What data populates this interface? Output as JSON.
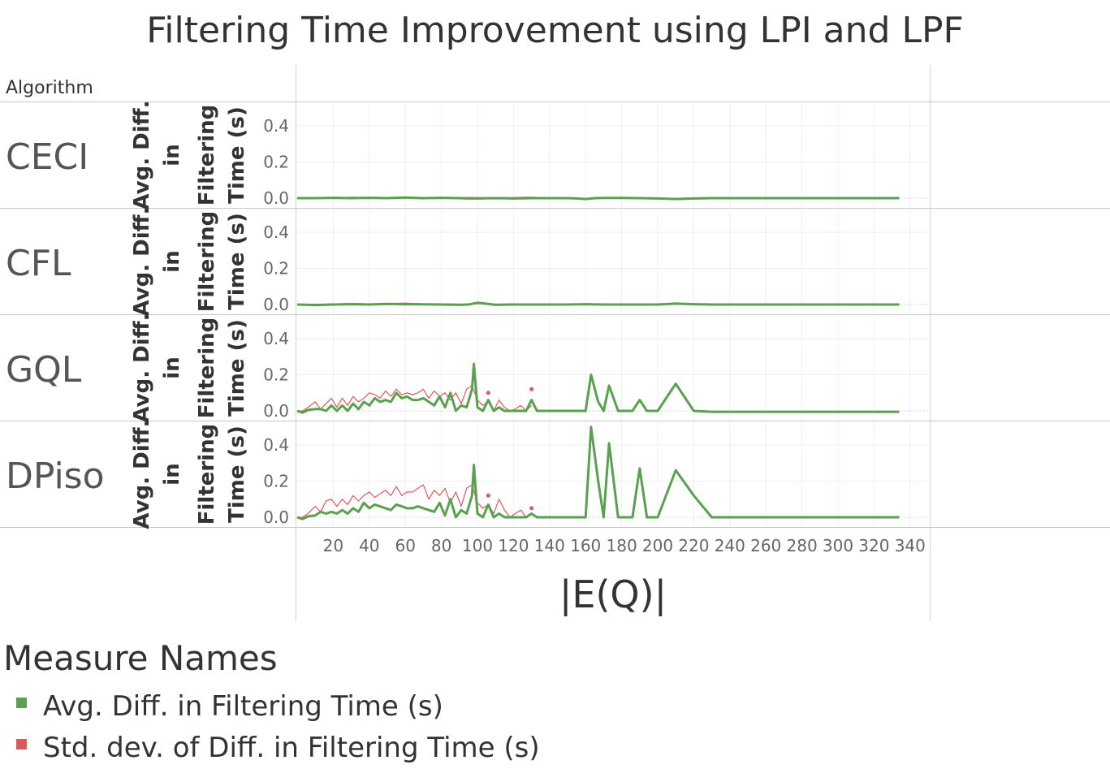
{
  "title": "Filtering Time Improvement using LPI and LPF",
  "row_header": "Algorithm",
  "legend": {
    "title": "Measure Names",
    "items": [
      {
        "label": "Avg. Diff. in Filtering Time (s)",
        "color": "#59a14f"
      },
      {
        "label": "Std. dev. of Diff. in Filtering Time (s)",
        "color": "#e15759"
      }
    ]
  },
  "chart_data": {
    "type": "line",
    "xlabel": "|E(Q)|",
    "ylabel": [
      "Avg. Diff.",
      "in",
      "Filtering",
      "Time (s)"
    ],
    "xlim": [
      0,
      350
    ],
    "ylim": [
      -0.01,
      0.55
    ],
    "xticks": [
      20,
      40,
      60,
      80,
      100,
      120,
      140,
      160,
      180,
      200,
      220,
      240,
      260,
      280,
      300,
      320,
      340
    ],
    "yticks": [
      0.0,
      0.2,
      0.4
    ],
    "grid": true,
    "legend_placement": "bottom-left",
    "panels": [
      {
        "algorithm": "CECI",
        "series": [
          {
            "name": "Avg. Diff. in Filtering Time (s)",
            "x": [
              0,
              10,
              20,
              30,
              40,
              50,
              60,
              70,
              80,
              90,
              95,
              100,
              110,
              120,
              130,
              140,
              150,
              155,
              160,
              165,
              170,
              180,
              190,
              200,
              210,
              220,
              230,
              240,
              260,
              280,
              300,
              320,
              334
            ],
            "y": [
              0.0,
              0.0,
              0.002,
              0.0,
              0.002,
              0.0,
              0.003,
              0.0,
              0.002,
              0.0,
              -0.002,
              -0.002,
              0.0,
              -0.002,
              0.0,
              0.0,
              0.0,
              -0.002,
              -0.005,
              0.0,
              0.001,
              0.001,
              0.0,
              -0.002,
              -0.005,
              -0.002,
              0.0,
              0.0,
              0.0,
              0.0,
              0.0,
              0.0,
              0.0
            ]
          },
          {
            "name": "Std. dev. of Diff. in Filtering Time (s)",
            "x": [
              0,
              10,
              20,
              30,
              40,
              50,
              60,
              70,
              80,
              90,
              95,
              100,
              110,
              120,
              130,
              140,
              150,
              155,
              160,
              165,
              170,
              180,
              190
            ],
            "y": [
              0.0,
              0.004,
              0.002,
              0.005,
              0.003,
              0.004,
              0.006,
              0.003,
              0.004,
              0.002,
              0.004,
              0.003,
              0.003,
              0.003,
              0.006,
              0.001,
              0.0,
              0.0,
              -0.004,
              0.001,
              0.002,
              0.001,
              0.003
            ]
          }
        ]
      },
      {
        "algorithm": "CFL",
        "series": [
          {
            "name": "Avg. Diff. in Filtering Time (s)",
            "x": [
              0,
              10,
              20,
              30,
              40,
              50,
              60,
              70,
              80,
              90,
              95,
              100,
              110,
              120,
              130,
              140,
              150,
              160,
              170,
              180,
              190,
              200,
              210,
              220,
              230,
              240,
              260,
              280,
              300,
              320,
              334
            ],
            "y": [
              0.0,
              -0.003,
              0.0,
              0.002,
              0.0,
              0.003,
              0.002,
              0.001,
              0.0,
              -0.002,
              0.0,
              0.01,
              -0.002,
              0.0,
              0.0,
              0.0,
              0.0,
              0.002,
              0.0,
              0.0,
              0.0,
              0.0,
              0.005,
              0.002,
              0.0,
              0.0,
              0.0,
              0.0,
              0.0,
              0.0,
              0.0
            ]
          },
          {
            "name": "Std. dev. of Diff. in Filtering Time (s)",
            "x": [
              0,
              10,
              20,
              30,
              40,
              50,
              60,
              70,
              80,
              90,
              100,
              105,
              110,
              120,
              130,
              140,
              150,
              160
            ],
            "y": [
              0.0,
              0.002,
              0.003,
              0.006,
              0.004,
              0.006,
              0.008,
              0.003,
              0.004,
              0.002,
              0.004,
              0.005,
              0.002,
              0.003,
              0.004,
              0.0,
              0.0,
              0.002
            ]
          }
        ]
      },
      {
        "algorithm": "GQL",
        "series": [
          {
            "name": "Avg. Diff. in Filtering Time (s)",
            "x": [
              0,
              3,
              6,
              10,
              13,
              16,
              19,
              22,
              25,
              28,
              31,
              34,
              37,
              40,
              43,
              46,
              49,
              52,
              55,
              58,
              61,
              64,
              67,
              70,
              73,
              76,
              79,
              82,
              85,
              88,
              91,
              94,
              97,
              98,
              100,
              103,
              106,
              109,
              112,
              115,
              118,
              121,
              124,
              127,
              130,
              133,
              136,
              140,
              145,
              150,
              155,
              160,
              163,
              167,
              170,
              173,
              178,
              182,
              186,
              190,
              194,
              200,
              210,
              220,
              230,
              240,
              260,
              280,
              300,
              320,
              334
            ],
            "y": [
              0.0,
              -0.01,
              0.005,
              0.01,
              0.01,
              0.0,
              0.03,
              0.0,
              0.03,
              0.0,
              0.04,
              0.01,
              0.05,
              0.03,
              0.07,
              0.05,
              0.06,
              0.05,
              0.1,
              0.07,
              0.08,
              0.06,
              0.06,
              0.07,
              0.05,
              0.03,
              0.08,
              0.02,
              0.1,
              0.0,
              0.03,
              0.02,
              0.12,
              0.26,
              0.02,
              0.0,
              0.06,
              0.0,
              0.02,
              0.0,
              0.0,
              0.0,
              0.0,
              0.0,
              0.06,
              0.0,
              0.0,
              0.0,
              0.0,
              0.0,
              0.0,
              0.0,
              0.2,
              0.05,
              0.0,
              0.14,
              0.0,
              0.0,
              0.0,
              0.06,
              0.0,
              0.0,
              0.15,
              0.0,
              -0.005,
              -0.005,
              -0.005,
              -0.005,
              -0.005,
              -0.005,
              -0.005
            ]
          },
          {
            "name": "Std. dev. of Diff. in Filtering Time (s)",
            "x": [
              0,
              3,
              6,
              10,
              13,
              16,
              19,
              22,
              25,
              28,
              31,
              34,
              37,
              40,
              43,
              46,
              49,
              52,
              55,
              58,
              61,
              64,
              67,
              70,
              73,
              76,
              79,
              82,
              85,
              88,
              91,
              94,
              97,
              100,
              103,
              106,
              109,
              112,
              115,
              118,
              121,
              124,
              127,
              130
            ],
            "y": [
              0.0,
              0.0,
              0.02,
              0.05,
              0.01,
              0.04,
              0.07,
              0.02,
              0.07,
              0.03,
              0.08,
              0.05,
              0.07,
              0.1,
              0.09,
              0.07,
              0.11,
              0.08,
              0.12,
              0.09,
              0.1,
              0.09,
              0.1,
              0.12,
              0.07,
              0.11,
              0.08,
              0.1,
              0.06,
              0.1,
              0.04,
              0.12,
              0.14,
              0.06,
              0.03,
              0.05,
              0.0,
              0.06,
              0.02,
              0.0,
              0.01,
              0.03,
              0.0,
              0.03
            ]
          }
        ],
        "extra_points": [
          {
            "x": 106,
            "y": 0.1
          },
          {
            "x": 130,
            "y": 0.12
          }
        ]
      },
      {
        "algorithm": "DPiso",
        "series": [
          {
            "name": "Avg. Diff. in Filtering Time (s)",
            "x": [
              0,
              3,
              6,
              10,
              13,
              16,
              19,
              22,
              25,
              28,
              31,
              34,
              37,
              40,
              43,
              46,
              49,
              52,
              55,
              58,
              61,
              64,
              67,
              70,
              73,
              76,
              79,
              82,
              85,
              88,
              91,
              94,
              97,
              98,
              100,
              103,
              106,
              109,
              112,
              115,
              118,
              121,
              124,
              127,
              130,
              133,
              136,
              140,
              145,
              150,
              155,
              160,
              163,
              167,
              170,
              173,
              178,
              182,
              186,
              190,
              194,
              200,
              210,
              220,
              230,
              240,
              260,
              280,
              300,
              320,
              334
            ],
            "y": [
              0.0,
              -0.01,
              0.005,
              0.01,
              0.03,
              0.02,
              0.03,
              0.02,
              0.04,
              0.02,
              0.05,
              0.03,
              0.08,
              0.05,
              0.07,
              0.06,
              0.05,
              0.04,
              0.07,
              0.06,
              0.05,
              0.05,
              0.06,
              0.05,
              0.04,
              0.03,
              0.08,
              0.01,
              0.1,
              0.0,
              0.04,
              0.02,
              0.12,
              0.29,
              0.02,
              0.0,
              0.07,
              0.0,
              0.02,
              0.0,
              0.0,
              0.0,
              0.0,
              0.0,
              0.02,
              0.0,
              0.0,
              0.0,
              0.0,
              0.0,
              0.0,
              0.0,
              0.5,
              0.2,
              0.0,
              0.41,
              0.0,
              0.0,
              0.0,
              0.27,
              0.0,
              0.0,
              0.26,
              0.12,
              0.0,
              0.0,
              0.0,
              0.0,
              0.0,
              0.0,
              0.0
            ]
          },
          {
            "name": "Std. dev. of Diff. in Filtering Time (s)",
            "x": [
              0,
              3,
              6,
              10,
              13,
              16,
              19,
              22,
              25,
              28,
              31,
              34,
              37,
              40,
              43,
              46,
              49,
              52,
              55,
              58,
              61,
              64,
              67,
              70,
              73,
              76,
              79,
              82,
              85,
              88,
              91,
              94,
              97,
              100,
              103,
              106,
              109,
              112,
              115,
              118,
              121,
              124,
              127,
              130
            ],
            "y": [
              0.0,
              0.0,
              0.02,
              0.06,
              0.03,
              0.09,
              0.1,
              0.06,
              0.1,
              0.07,
              0.12,
              0.09,
              0.12,
              0.14,
              0.11,
              0.13,
              0.15,
              0.12,
              0.17,
              0.12,
              0.14,
              0.14,
              0.16,
              0.18,
              0.1,
              0.15,
              0.12,
              0.16,
              0.08,
              0.14,
              0.06,
              0.16,
              0.18,
              0.08,
              0.05,
              0.07,
              0.02,
              0.1,
              0.04,
              0.0,
              0.02,
              0.04,
              0.0,
              0.02
            ]
          }
        ],
        "extra_points": [
          {
            "x": 106,
            "y": 0.12
          },
          {
            "x": 130,
            "y": 0.05
          }
        ]
      }
    ]
  }
}
